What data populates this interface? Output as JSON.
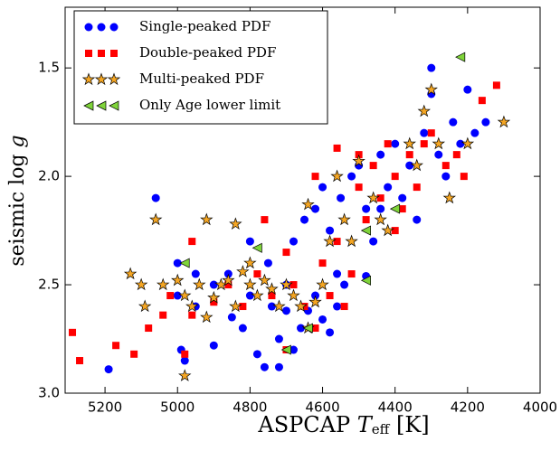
{
  "chart_data": {
    "type": "scatter",
    "xlabel": {
      "text": "ASPCAP",
      "symbol": "T",
      "subscript": "eff",
      "unit": "[K]"
    },
    "ylabel": {
      "text": "seismic",
      "symbol": "log",
      "variable": "g"
    },
    "xlim": [
      5310,
      4000
    ],
    "ylim": [
      1.22,
      3.0
    ],
    "xticks": [
      5200,
      5000,
      4800,
      4600,
      4400,
      4200,
      4000
    ],
    "yticks": [
      1.5,
      {
        "value": 2.0,
        "label": "2.0"
      },
      2.5,
      {
        "value": 3.0,
        "label": "3.0"
      }
    ],
    "legend": "upper left",
    "series": [
      {
        "name": "Single-peaked PDF",
        "color": "#0000ff",
        "marker": "circle",
        "x": [
          5190,
          5060,
          4990,
          4980,
          5000,
          4950,
          4900,
          4850,
          4820,
          4800,
          4780,
          4760,
          4740,
          4720,
          4700,
          4680,
          4660,
          4640,
          4620,
          4600,
          4580,
          4560,
          4540,
          4720,
          4680,
          4650,
          4620,
          4600,
          4580,
          4550,
          4520,
          4500,
          4480,
          4460,
          4440,
          4420,
          4400,
          4380,
          4360,
          4340,
          4320,
          4300,
          4280,
          4260,
          4240,
          4220,
          4200,
          4180,
          4150,
          4480,
          4300,
          4800,
          4860,
          4750,
          5000,
          4950,
          4900,
          4700,
          4560,
          4440
        ],
        "y": [
          2.89,
          2.1,
          2.8,
          2.85,
          2.4,
          2.6,
          2.78,
          2.65,
          2.7,
          2.55,
          2.82,
          2.88,
          2.6,
          2.75,
          2.5,
          2.8,
          2.7,
          2.62,
          2.55,
          2.66,
          2.72,
          2.6,
          2.5,
          2.88,
          2.3,
          2.2,
          2.15,
          2.05,
          2.25,
          2.1,
          2.0,
          1.95,
          2.15,
          2.3,
          1.9,
          2.05,
          1.85,
          2.1,
          1.95,
          2.2,
          1.8,
          1.5,
          1.9,
          2.0,
          1.75,
          1.85,
          1.6,
          1.8,
          1.75,
          2.46,
          1.62,
          2.3,
          2.45,
          2.4,
          2.55,
          2.45,
          2.5,
          2.62,
          2.45,
          2.15
        ]
      },
      {
        "name": "Double-peaked PDF",
        "color": "#ff0000",
        "marker": "square",
        "x": [
          5290,
          5270,
          5170,
          5120,
          5080,
          5040,
          5020,
          4980,
          4960,
          4900,
          4860,
          4820,
          4780,
          4760,
          4740,
          4700,
          4680,
          4650,
          4620,
          4600,
          4580,
          4560,
          4540,
          4520,
          4500,
          4480,
          4460,
          4440,
          4420,
          4400,
          4380,
          4360,
          4340,
          4320,
          4300,
          4260,
          4230,
          4160,
          4120,
          4210,
          4560,
          4500,
          4960,
          4700,
          4620,
          4400
        ],
        "y": [
          2.72,
          2.85,
          2.78,
          2.82,
          2.7,
          2.64,
          2.55,
          2.82,
          2.64,
          2.58,
          2.5,
          2.6,
          2.45,
          2.2,
          2.55,
          2.35,
          2.5,
          2.6,
          2.7,
          2.4,
          2.55,
          2.3,
          2.6,
          2.45,
          2.05,
          2.2,
          1.95,
          2.1,
          1.85,
          2.0,
          2.15,
          1.9,
          2.05,
          1.85,
          1.8,
          1.95,
          1.9,
          1.65,
          1.58,
          2.0,
          1.87,
          1.9,
          2.3,
          2.8,
          2.0,
          2.25
        ]
      },
      {
        "name": "Multi-peaked PDF",
        "color": "#f5a623",
        "marker": "star",
        "x": [
          5130,
          5100,
          5090,
          5040,
          5000,
          4980,
          4960,
          4940,
          4920,
          4900,
          4880,
          4860,
          4840,
          4820,
          4800,
          4780,
          4760,
          4740,
          4720,
          4700,
          4680,
          4660,
          4640,
          4620,
          4600,
          4580,
          4560,
          4540,
          4520,
          4500,
          4460,
          4440,
          4420,
          4360,
          4340,
          4320,
          4280,
          4250,
          4200,
          4100,
          5060,
          4920,
          4840,
          4640,
          4980,
          4300,
          4800
        ],
        "y": [
          2.45,
          2.5,
          2.6,
          2.5,
          2.48,
          2.55,
          2.6,
          2.5,
          2.65,
          2.56,
          2.5,
          2.48,
          2.6,
          2.44,
          2.5,
          2.55,
          2.48,
          2.52,
          2.6,
          2.5,
          2.55,
          2.6,
          2.7,
          2.58,
          2.5,
          2.3,
          2.0,
          2.2,
          2.3,
          1.93,
          2.1,
          2.2,
          2.25,
          1.85,
          1.95,
          1.7,
          1.85,
          2.1,
          1.85,
          1.75,
          2.2,
          2.2,
          2.22,
          2.13,
          2.92,
          1.6,
          2.4
        ]
      },
      {
        "name": "Only Age lower limit",
        "color": "#7fd43a",
        "marker": "triangle-left",
        "x": [
          4220,
          4980,
          4780,
          4700,
          4640,
          4480,
          4480,
          4400
        ],
        "y": [
          1.45,
          2.4,
          2.33,
          2.8,
          2.7,
          2.48,
          2.25,
          2.15
        ]
      }
    ]
  }
}
